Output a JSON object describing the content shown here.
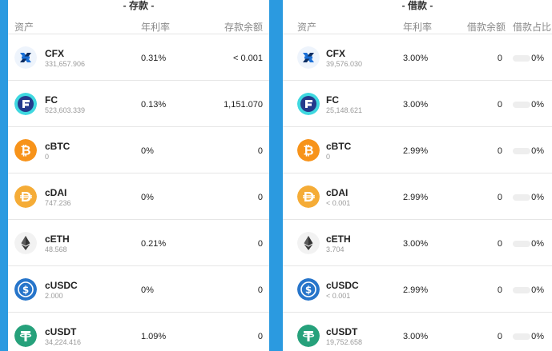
{
  "deposit": {
    "title": "- 存款 -",
    "headers": {
      "asset": "资产",
      "rate": "年利率",
      "balance": "存款余额"
    },
    "rows": [
      {
        "symbol": "CFX",
        "amount": "331,657.906",
        "rate": "0.31%",
        "balance": "< 0.001",
        "icon": "cfx-icon"
      },
      {
        "symbol": "FC",
        "amount": "523,603.339",
        "rate": "0.13%",
        "balance": "1,151.070",
        "icon": "fc-icon"
      },
      {
        "symbol": "cBTC",
        "amount": "0",
        "rate": "0%",
        "balance": "0",
        "icon": "bitcoin-icon"
      },
      {
        "symbol": "cDAI",
        "amount": "747.236",
        "rate": "0%",
        "balance": "0",
        "icon": "dai-icon"
      },
      {
        "symbol": "cETH",
        "amount": "48.568",
        "rate": "0.21%",
        "balance": "0",
        "icon": "ethereum-icon"
      },
      {
        "symbol": "cUSDC",
        "amount": "2.000",
        "rate": "0%",
        "balance": "0",
        "icon": "usdc-icon"
      },
      {
        "symbol": "cUSDT",
        "amount": "34,224.416",
        "rate": "1.09%",
        "balance": "0",
        "icon": "tether-icon"
      }
    ]
  },
  "borrow": {
    "title": "- 借款 -",
    "headers": {
      "asset": "资产",
      "rate": "年利率",
      "balance": "借款余额",
      "share": "借款占比"
    },
    "rows": [
      {
        "symbol": "CFX",
        "amount": "39,576.030",
        "rate": "3.00%",
        "balance": "0",
        "share": "0%",
        "share_fraction": 0,
        "icon": "cfx-icon"
      },
      {
        "symbol": "FC",
        "amount": "25,148.621",
        "rate": "3.00%",
        "balance": "0",
        "share": "0%",
        "share_fraction": 0,
        "icon": "fc-icon"
      },
      {
        "symbol": "cBTC",
        "amount": "0",
        "rate": "2.99%",
        "balance": "0",
        "share": "0%",
        "share_fraction": 0,
        "icon": "bitcoin-icon"
      },
      {
        "symbol": "cDAI",
        "amount": "< 0.001",
        "rate": "2.99%",
        "balance": "0",
        "share": "0%",
        "share_fraction": 0,
        "icon": "dai-icon"
      },
      {
        "symbol": "cETH",
        "amount": "3.704",
        "rate": "3.00%",
        "balance": "0",
        "share": "0%",
        "share_fraction": 0,
        "icon": "ethereum-icon"
      },
      {
        "symbol": "cUSDC",
        "amount": "< 0.001",
        "rate": "2.99%",
        "balance": "0",
        "share": "0%",
        "share_fraction": 0,
        "icon": "usdc-icon"
      },
      {
        "symbol": "cUSDT",
        "amount": "19,752.658",
        "rate": "3.00%",
        "balance": "0",
        "share": "0%",
        "share_fraction": 0,
        "icon": "tether-icon"
      }
    ]
  },
  "colors": {
    "background": "#2b9ae0",
    "btc": "#f7931a",
    "dai": "#f5ac37",
    "usdc": "#2775ca",
    "usdt": "#26a17b",
    "fc_ring": "#3fd8e0",
    "cfx_blue": "#1a6fd6"
  }
}
